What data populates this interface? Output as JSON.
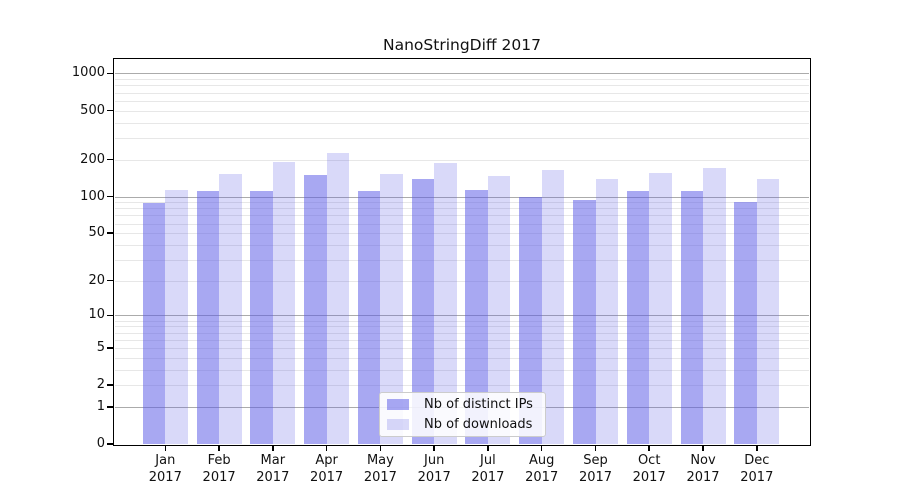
{
  "title": "NanoStringDiff 2017",
  "chart_data": {
    "type": "bar",
    "title": "NanoStringDiff 2017",
    "categories": [
      "Jan 2017",
      "Feb 2017",
      "Mar 2017",
      "Apr 2017",
      "May 2017",
      "Jun 2017",
      "Jul 2017",
      "Aug 2017",
      "Sep 2017",
      "Oct 2017",
      "Nov 2017",
      "Dec 2017"
    ],
    "series": [
      {
        "name": "Nb of distinct IPs",
        "color": "rgba(90,90,230,0.53)",
        "values": [
          88,
          111,
          111,
          150,
          110,
          138,
          112,
          100,
          93,
          111,
          111,
          91
        ]
      },
      {
        "name": "Nb of downloads",
        "color": "rgba(90,90,230,0.23)",
        "values": [
          114,
          152,
          190,
          225,
          153,
          187,
          146,
          166,
          140,
          156,
          171,
          138
        ]
      }
    ],
    "xlabel": "",
    "ylabel": "",
    "y_scale": "log10(value+1)",
    "y_ticks": [
      0,
      1,
      2,
      5,
      10,
      20,
      50,
      100,
      200,
      500,
      1000
    ],
    "y_major_grid": [
      1,
      10,
      100,
      1000
    ],
    "ylim": [
      0,
      1300
    ],
    "grid": true,
    "legend_position": "bottom-center",
    "colors": {
      "grid_major": "#ababab",
      "grid_minor": "#e7e7e7",
      "axis": "#000000"
    }
  }
}
